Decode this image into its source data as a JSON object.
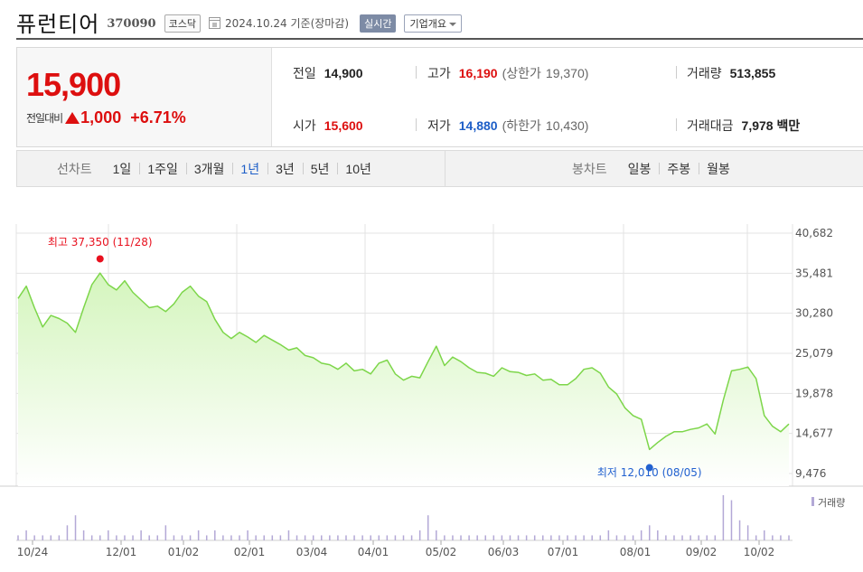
{
  "header": {
    "stock_name": "퓨런티어",
    "stock_code": "370090",
    "market": "코스닥",
    "date_text": "2024.10.24  기준(장마감)",
    "realtime_label": "실시간",
    "company_label": "기업개요"
  },
  "quote": {
    "current_price": "15,900",
    "change_label": "전일대비",
    "change_value": "1,000",
    "change_pct": "+6.71%",
    "prev_close_label": "전일",
    "prev_close": "14,900",
    "open_label": "시가",
    "open": "15,600",
    "high_label": "고가",
    "high": "16,190",
    "upper_limit_label": "(상한가",
    "upper_limit": "19,370)",
    "low_label": "저가",
    "low": "14,880",
    "lower_limit_label": "(하한가",
    "lower_limit": "10,430)",
    "volume_label": "거래량",
    "volume": "513,855",
    "trade_value_label": "거래대금",
    "trade_value": "7,978 백만",
    "colors": {
      "up": "#dd0f0f",
      "down": "#1d5ec7"
    }
  },
  "tabs": {
    "line_title": "선차트",
    "line_periods": [
      "1일",
      "1주일",
      "3개월",
      "1년",
      "3년",
      "5년",
      "10년"
    ],
    "active_period": "1년",
    "candle_title": "봉차트",
    "candle_periods": [
      "일봉",
      "주봉",
      "월봉"
    ]
  },
  "chart_data": {
    "type": "area",
    "y_axis_ticks": [
      "40,682",
      "35,481",
      "30,280",
      "25,079",
      "19,878",
      "14,677",
      "9,476"
    ],
    "ylim": [
      9476,
      40682
    ],
    "x_tick_labels": [
      "10/24",
      "12/01",
      "01/02",
      "02/01",
      "03/04",
      "04/01",
      "05/02",
      "06/03",
      "07/01",
      "08/01",
      "09/02",
      "10/02"
    ],
    "max_annotation": "최고 37,350 (11/28)",
    "min_annotation": "최저 12,010 (08/05)",
    "volume_legend": "거래량",
    "colors": {
      "line": "#7dd64a",
      "fill_top": "#d4f5bd",
      "fill_bottom": "#ffffff",
      "max_dot": "#e8101e",
      "min_dot": "#2261d0",
      "volume": "#b3a8d6",
      "grid": "#e3e3e3"
    },
    "grid": true,
    "series": [
      {
        "values": [
          32200,
          33800,
          31000,
          28500,
          30000,
          29600,
          29000,
          27800,
          31000,
          34000,
          35500,
          34000,
          33300,
          34500,
          33000,
          32000,
          31000,
          31200,
          30500,
          31500,
          33000,
          33800,
          32500,
          31800,
          29500,
          27800,
          27000,
          27800,
          27200,
          26500,
          27400,
          26800,
          26200,
          25500,
          25800,
          24800,
          24500,
          23800,
          23600,
          23000,
          23800,
          22800,
          23000,
          22400,
          23800,
          24200,
          22400,
          21600,
          22100,
          21900,
          24000,
          26000,
          23500,
          24600,
          24000,
          23200,
          22600,
          22500,
          22100,
          23200,
          22700,
          22600,
          22200,
          22400,
          21600,
          21700,
          21000,
          21000,
          21800,
          23000,
          23200,
          22500,
          20700,
          19800,
          18000,
          17000,
          16500,
          12600,
          13500,
          14300,
          14900,
          14900,
          15200,
          15400,
          15900,
          14600,
          19000,
          22800,
          23000,
          23300,
          21800,
          17000,
          15600,
          14900,
          15900
        ]
      }
    ],
    "volume_relative": [
      1,
      2,
      1,
      1,
      1,
      1,
      3,
      5,
      2,
      1,
      1,
      2,
      1,
      1,
      1,
      2,
      1,
      1,
      3,
      1,
      1,
      1,
      2,
      1,
      2,
      1,
      1,
      1,
      2,
      1,
      1,
      1,
      1,
      2,
      1,
      1,
      1,
      1,
      1,
      1,
      1,
      1,
      1,
      1,
      1,
      1,
      1,
      1,
      1,
      2,
      5,
      2,
      1,
      1,
      1,
      1,
      1,
      1,
      1,
      1,
      1,
      1,
      1,
      1,
      1,
      1,
      1,
      1,
      1,
      1,
      1,
      1,
      2,
      1,
      1,
      1,
      2,
      3,
      2,
      1,
      1,
      1,
      1,
      1,
      1,
      1,
      9,
      8,
      4,
      3,
      1,
      2,
      1,
      1,
      1
    ]
  }
}
